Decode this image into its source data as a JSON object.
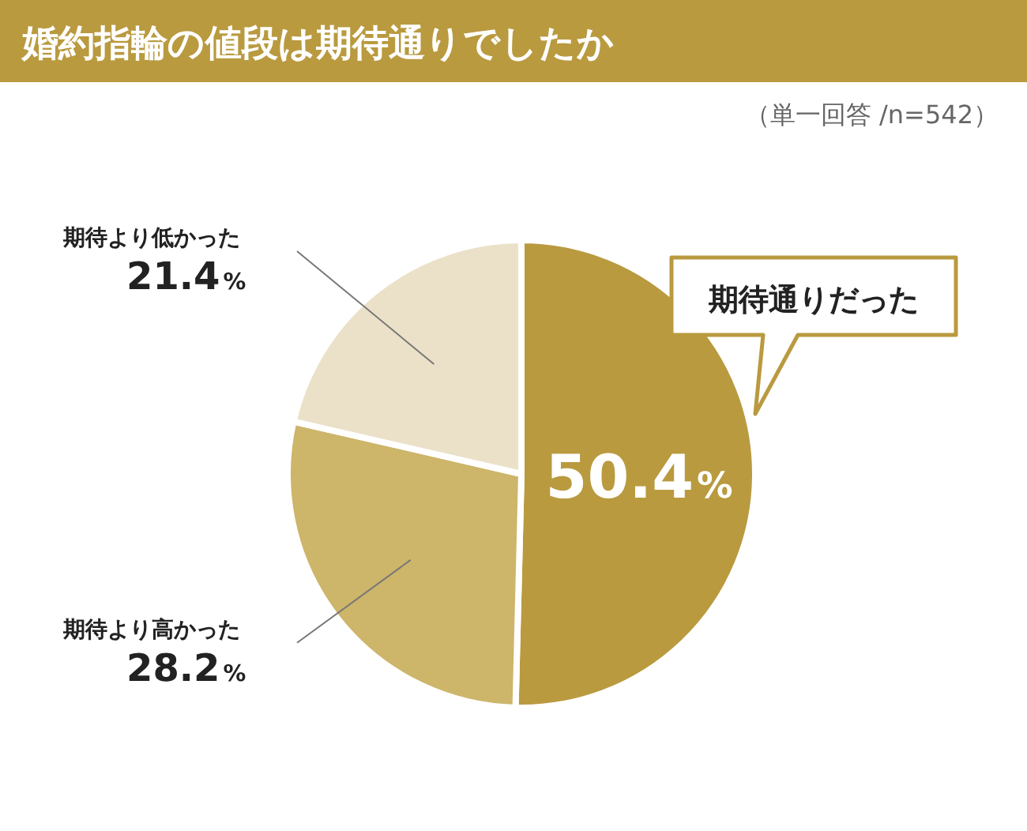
{
  "chart_data": {
    "type": "pie",
    "title": "婚約指輪の値段は期待通りでしたか",
    "subtitle": "（単一回答 /n=542）",
    "categories": [
      "期待通りだった",
      "期待より高かった",
      "期待より低かった"
    ],
    "values": [
      50.4,
      28.2,
      21.4
    ],
    "colors": [
      "#b99a3f",
      "#cdb56a",
      "#ebe1c8"
    ],
    "value_labels": [
      "50.4%",
      "28.2%",
      "21.4%"
    ]
  }
}
